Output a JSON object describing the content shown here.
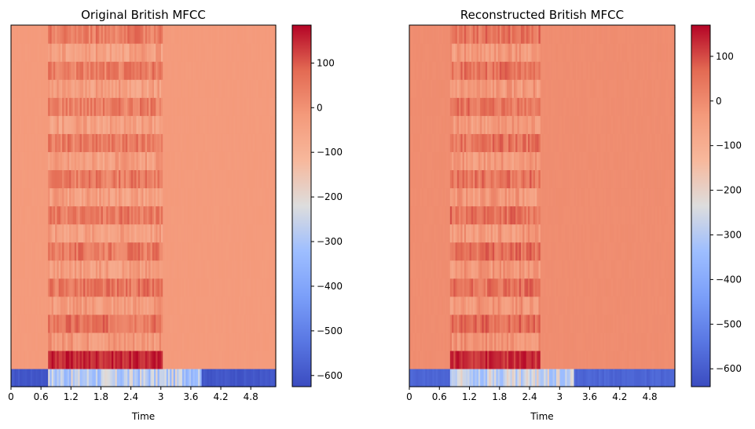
{
  "chart_data": [
    {
      "type": "heatmap",
      "title": "Original British MFCC",
      "xlabel": "Time",
      "ylabel": "",
      "x_ticks": [
        "0",
        "0.6",
        "1.2",
        "1.8",
        "2.4",
        "3",
        "3.6",
        "4.2",
        "4.8"
      ],
      "xlim": [
        0,
        5.3
      ],
      "colormap": "coolwarm",
      "colorbar": {
        "ticks": [
          "100",
          "0",
          "−100",
          "−200",
          "−300",
          "−400",
          "−500",
          "−600"
        ],
        "vmin": -625,
        "vmax": 185
      },
      "n_coefficients": 20,
      "activity_range": [
        0.75,
        3.05
      ],
      "coef0_active_range": [
        0.75,
        3.8
      ],
      "coef0_silence_value": -600,
      "coef0_active_value": -280,
      "coef1_active_value": 150,
      "background_value": -20
    },
    {
      "type": "heatmap",
      "title": "Reconstructed British MFCC",
      "xlabel": "Time",
      "ylabel": "",
      "x_ticks": [
        "0",
        "0.6",
        "1.2",
        "1.8",
        "2.4",
        "3",
        "3.6",
        "4.2",
        "4.8"
      ],
      "xlim": [
        0,
        5.3
      ],
      "colormap": "coolwarm",
      "colorbar": {
        "ticks": [
          "100",
          "0",
          "−100",
          "−200",
          "−300",
          "−400",
          "−500",
          "−600"
        ],
        "vmin": -640,
        "vmax": 170
      },
      "n_coefficients": 20,
      "activity_range": [
        0.8,
        2.6
      ],
      "coef0_active_range": [
        0.8,
        3.3
      ],
      "coef0_silence_value": -580,
      "coef0_active_value": -260,
      "coef1_active_value": 130,
      "background_value": -5
    }
  ]
}
